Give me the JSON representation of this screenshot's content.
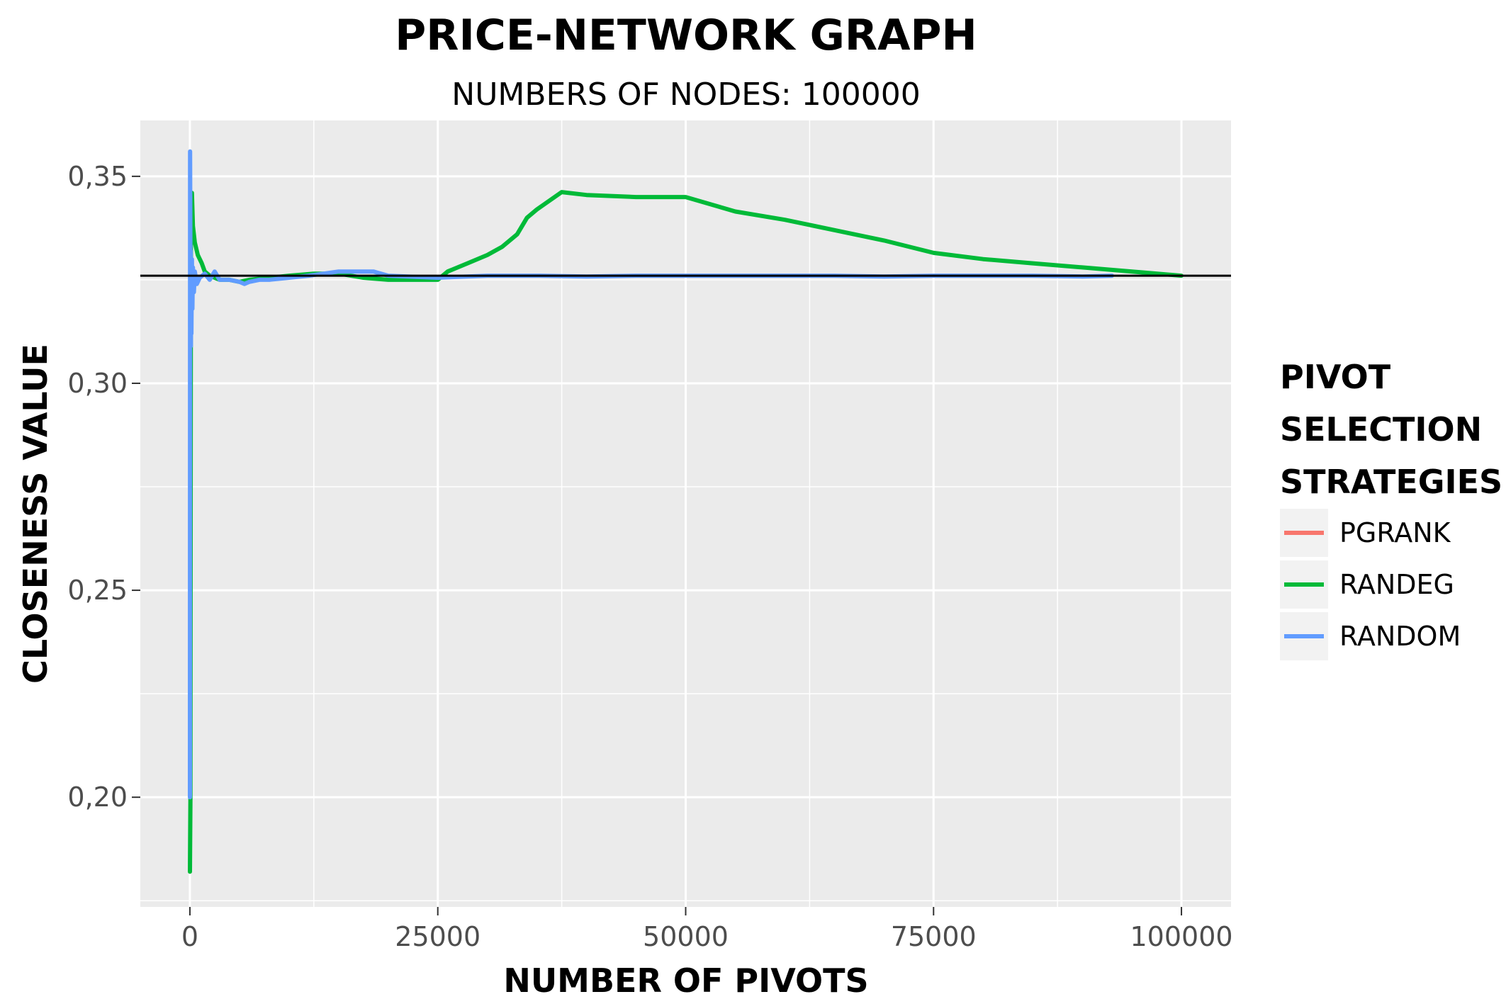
{
  "chart_data": {
    "type": "line",
    "title": "PRICE-NETWORK GRAPH",
    "subtitle": "NUMBERS OF NODES: 100000",
    "xlabel": "NUMBER OF PIVOTS",
    "ylabel": "CLOSENESS VALUE",
    "xlim": [
      -5000,
      105000
    ],
    "ylim": [
      0.1735,
      0.3635
    ],
    "x_ticks": [
      0,
      25000,
      50000,
      75000,
      100000
    ],
    "x_tick_labels": [
      "0",
      "25000",
      "50000",
      "75000",
      "100000"
    ],
    "y_ticks": [
      0.2,
      0.25,
      0.3,
      0.35
    ],
    "y_tick_labels": [
      "0,20",
      "0,25",
      "0,30",
      "0,35"
    ],
    "grid": true,
    "legend": {
      "title": "PIVOT SELECTION STRATEGIES",
      "title_lines": [
        "PIVOT",
        "SELECTION",
        "STRATEGIES"
      ],
      "position": "right"
    },
    "reference_line": {
      "y": 0.326,
      "color": "#000000"
    },
    "series": [
      {
        "name": "PGRANK",
        "color": "#F8766D",
        "x": [],
        "y": []
      },
      {
        "name": "RANDEG",
        "color": "#00BA38",
        "x": [
          1,
          50,
          100,
          200,
          300,
          500,
          800,
          1200,
          1500,
          2000,
          3000,
          4000,
          5000,
          6000,
          8000,
          10000,
          12500,
          15000,
          17500,
          20000,
          25000,
          26000,
          28000,
          30000,
          31500,
          33000,
          34000,
          35000,
          37500,
          40000,
          45000,
          50000,
          55000,
          60000,
          65000,
          70000,
          75000,
          80000,
          85000,
          90000,
          95000,
          100000
        ],
        "y": [
          0.182,
          0.2,
          0.343,
          0.346,
          0.338,
          0.334,
          0.331,
          0.329,
          0.327,
          0.326,
          0.325,
          0.325,
          0.3245,
          0.325,
          0.3255,
          0.326,
          0.3265,
          0.3265,
          0.3255,
          0.325,
          0.325,
          0.327,
          0.329,
          0.331,
          0.333,
          0.336,
          0.34,
          0.342,
          0.3462,
          0.3455,
          0.345,
          0.345,
          0.3415,
          0.3395,
          0.337,
          0.3345,
          0.3315,
          0.33,
          0.329,
          0.328,
          0.327,
          0.326
        ]
      },
      {
        "name": "RANDOM",
        "color": "#619CFF",
        "x": [
          1,
          20,
          40,
          60,
          80,
          100,
          120,
          150,
          200,
          250,
          300,
          400,
          500,
          700,
          1000,
          1500,
          2000,
          2500,
          3000,
          4000,
          5000,
          5500,
          6000,
          7000,
          8000,
          10000,
          12000,
          13500,
          15000,
          17000,
          18500,
          20000,
          25000,
          30000,
          35000,
          40000,
          45000,
          50000,
          55000,
          60000,
          65000,
          70000,
          75000,
          80000,
          85000,
          90000,
          93000
        ],
        "y": [
          0.2,
          0.356,
          0.34,
          0.315,
          0.332,
          0.309,
          0.325,
          0.312,
          0.33,
          0.318,
          0.328,
          0.322,
          0.327,
          0.324,
          0.3255,
          0.3265,
          0.325,
          0.327,
          0.325,
          0.325,
          0.3245,
          0.324,
          0.3245,
          0.325,
          0.325,
          0.3255,
          0.326,
          0.3265,
          0.327,
          0.327,
          0.327,
          0.326,
          0.3255,
          0.326,
          0.326,
          0.3258,
          0.326,
          0.326,
          0.326,
          0.326,
          0.326,
          0.3258,
          0.326,
          0.326,
          0.326,
          0.3258,
          0.326
        ]
      }
    ]
  }
}
